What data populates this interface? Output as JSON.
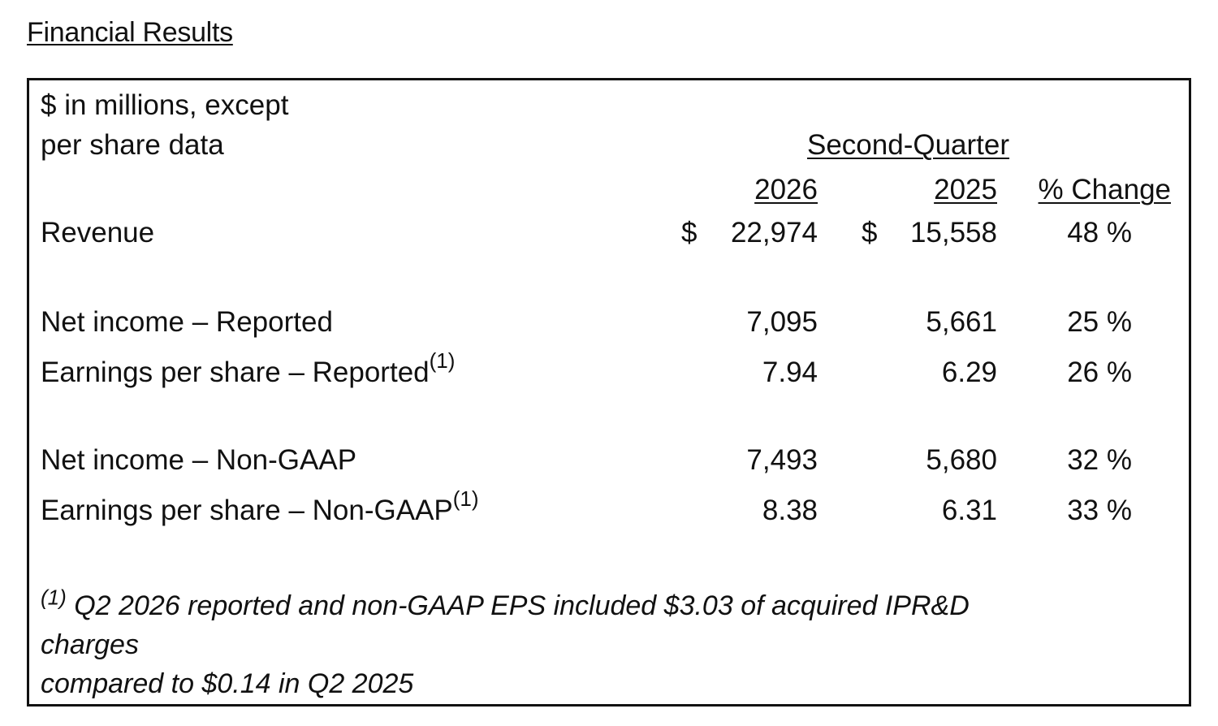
{
  "heading": "Financial Results",
  "table": {
    "unit_line1": "$ in millions, except",
    "unit_line2": "per share data",
    "period_header": "Second-Quarter",
    "columns": [
      "2026",
      "2025",
      "% Change"
    ],
    "currency_symbol": "$",
    "rows": [
      {
        "label": "Revenue",
        "footnote": "",
        "v2026": "22,974",
        "v2025": "15,558",
        "change": "48 %"
      },
      {
        "label": "Net income – Reported",
        "footnote": "",
        "v2026": "7,095",
        "v2025": "5,661",
        "change": "25 %"
      },
      {
        "label": "Earnings per share – Reported",
        "footnote": "(1)",
        "v2026": "7.94",
        "v2025": "6.29",
        "change": "26 %"
      },
      {
        "label": "Net income – Non-GAAP",
        "footnote": "",
        "v2026": "7,493",
        "v2025": "5,680",
        "change": "32 %"
      },
      {
        "label": "Earnings per share – Non-GAAP",
        "footnote": "(1)",
        "v2026": "8.38",
        "v2025": "6.31",
        "change": "33 %"
      }
    ],
    "footnote": {
      "marker": "(1)",
      "line1": " Q2 2026 reported and non-GAAP EPS included $3.03 of acquired IPR&D",
      "line2": "charges",
      "line3": "compared to $0.14 in Q2 2025"
    }
  }
}
